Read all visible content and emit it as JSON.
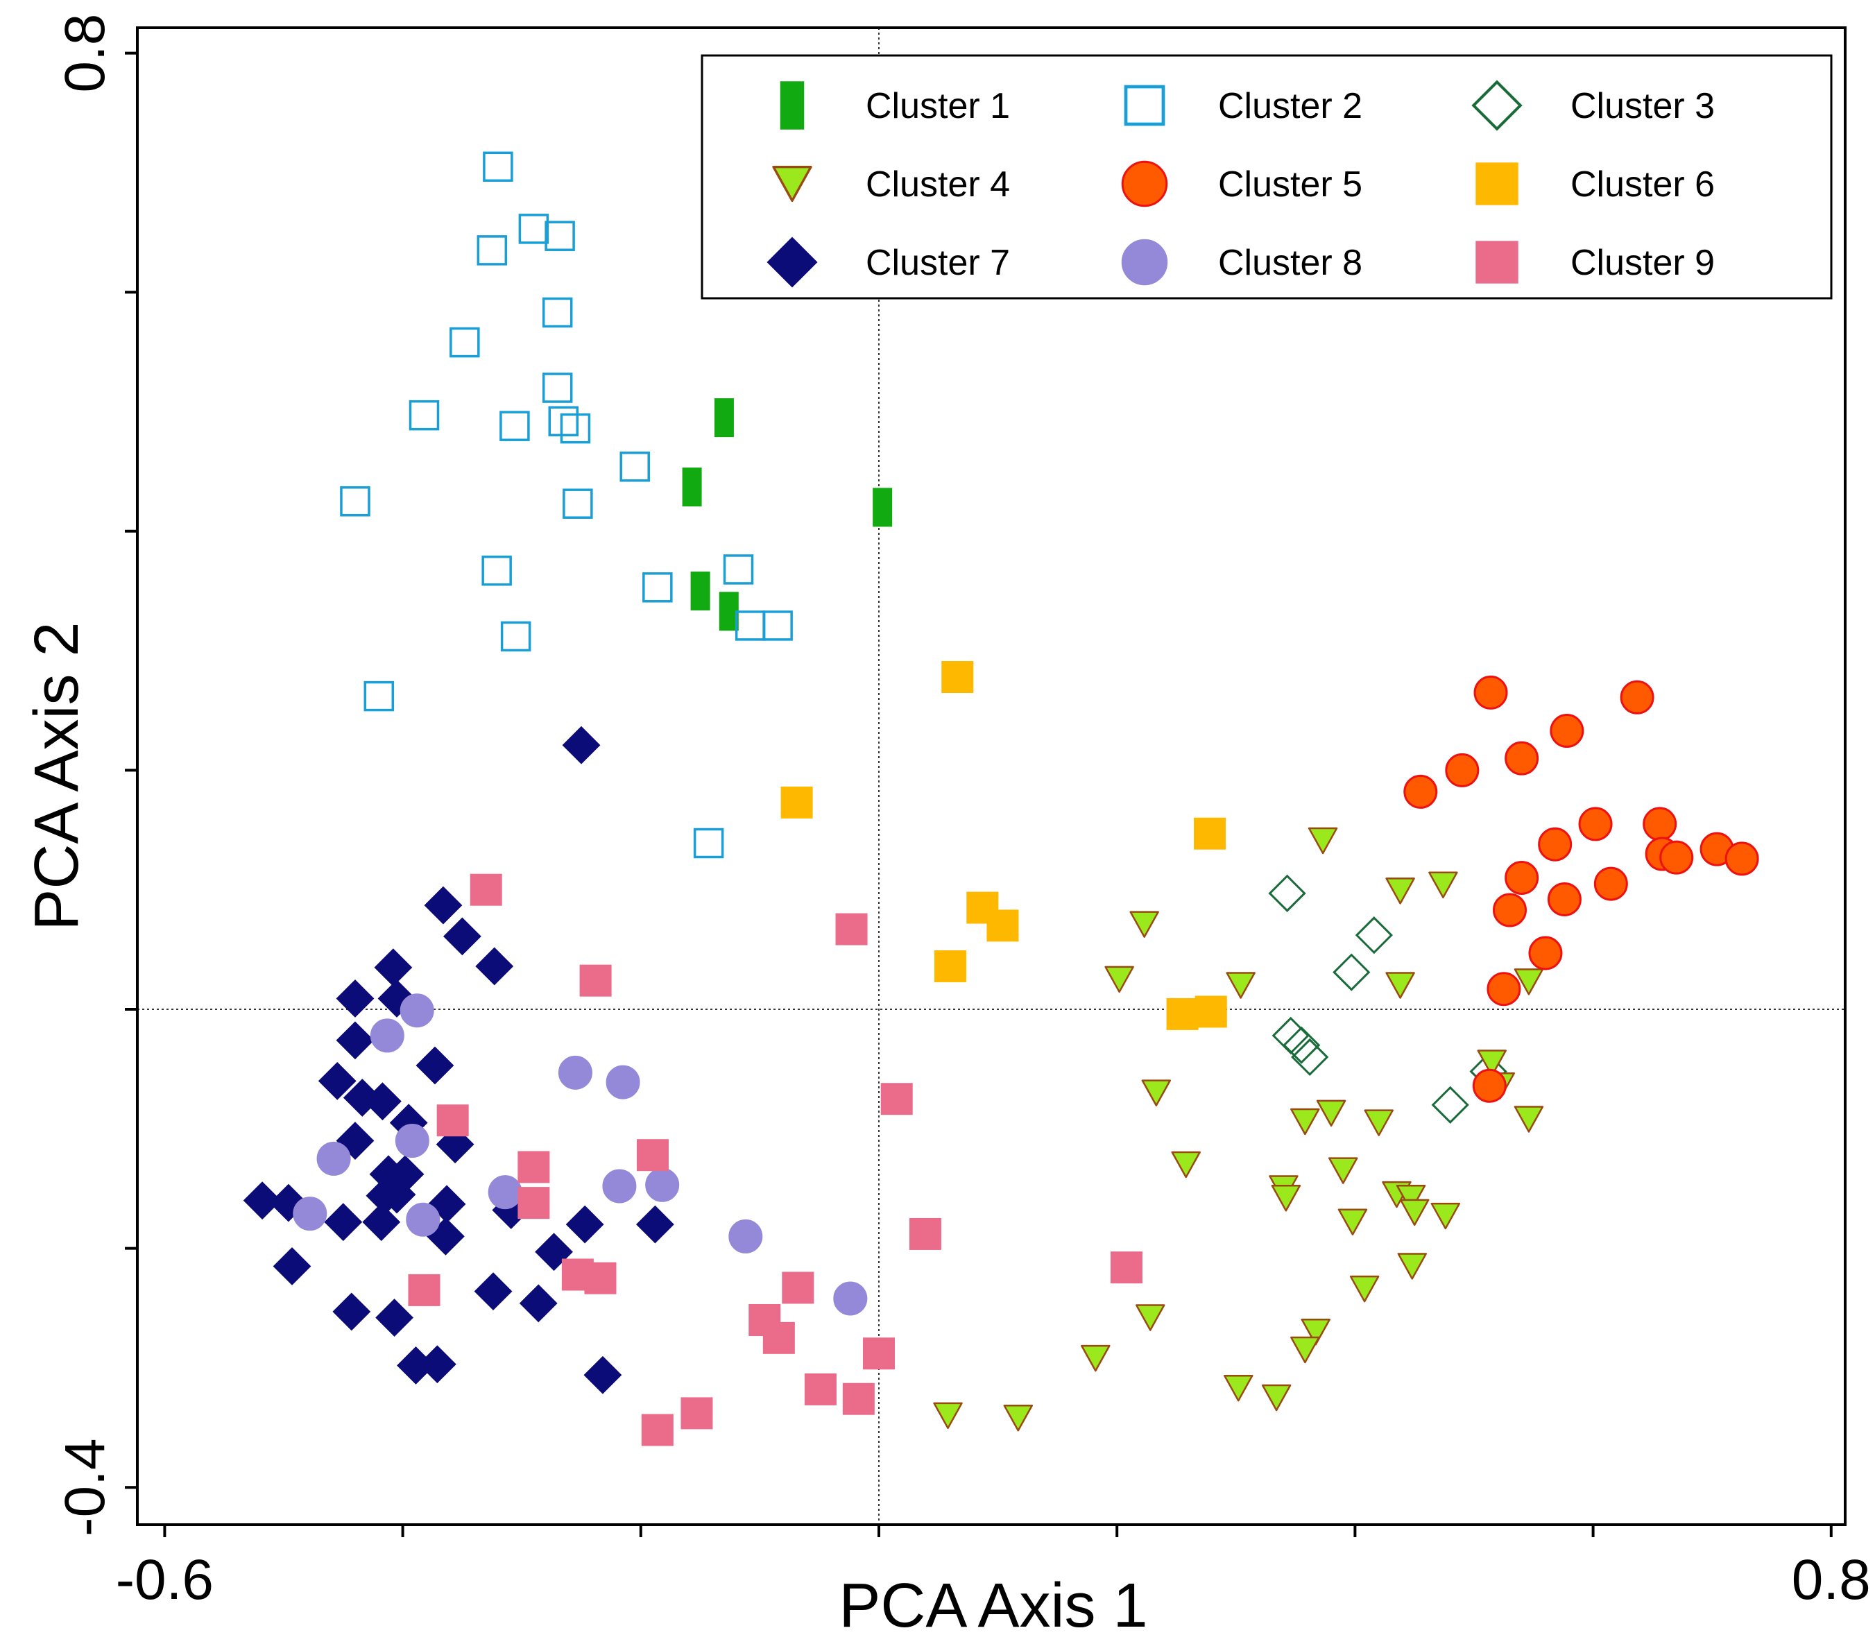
{
  "chart_data": {
    "type": "scatter",
    "title": "",
    "xlabel": "PCA Axis 1",
    "ylabel": "PCA Axis 2",
    "xlim": [
      -0.62,
      0.82
    ],
    "ylim": [
      -0.4,
      0.82
    ],
    "x_ticks": [
      -0.6,
      -0.4,
      -0.2,
      0.0,
      0.2,
      0.4,
      0.6,
      0.8
    ],
    "y_ticks": [
      -0.4,
      -0.2,
      0.0,
      0.2,
      0.4,
      0.6,
      0.8
    ],
    "x_tick_labels": [
      {
        "value": -0.6,
        "label": "-0.6"
      },
      {
        "value": 0.8,
        "label": "0.8"
      }
    ],
    "y_tick_labels": [
      {
        "value": -0.4,
        "label": "-0.4"
      },
      {
        "value": 0.8,
        "label": "0.8"
      }
    ],
    "reference_lines": {
      "x": 0,
      "y": 0,
      "style": "dotted"
    },
    "grid": false,
    "legend": {
      "position": "top-right",
      "columns": 3
    },
    "series": [
      {
        "name": "Cluster 1",
        "marker": "bar",
        "fill": "#11aa11",
        "stroke": "#11aa11",
        "points": [
          [
            -0.13,
            0.495
          ],
          [
            -0.157,
            0.437
          ],
          [
            -0.15,
            0.35
          ],
          [
            -0.126,
            0.333
          ],
          [
            0.003,
            0.42
          ]
        ]
      },
      {
        "name": "Cluster 2",
        "marker": "square-open",
        "fill": "none",
        "stroke": "#1a9ed6",
        "points": [
          [
            -0.32,
            0.705
          ],
          [
            -0.29,
            0.653
          ],
          [
            -0.325,
            0.635
          ],
          [
            -0.268,
            0.647
          ],
          [
            -0.27,
            0.583
          ],
          [
            -0.348,
            0.558
          ],
          [
            -0.27,
            0.52
          ],
          [
            -0.382,
            0.497
          ],
          [
            -0.306,
            0.488
          ],
          [
            -0.265,
            0.492
          ],
          [
            -0.255,
            0.486
          ],
          [
            -0.205,
            0.454
          ],
          [
            -0.44,
            0.425
          ],
          [
            -0.253,
            0.423
          ],
          [
            -0.321,
            0.367
          ],
          [
            -0.118,
            0.368
          ],
          [
            -0.186,
            0.353
          ],
          [
            -0.305,
            0.312
          ],
          [
            -0.108,
            0.321
          ],
          [
            -0.085,
            0.321
          ],
          [
            -0.42,
            0.262
          ],
          [
            -0.143,
            0.139
          ]
        ]
      },
      {
        "name": "Cluster 3",
        "marker": "diamond-open",
        "fill": "none",
        "stroke": "#1a6b3a",
        "points": [
          [
            0.343,
            0.097
          ],
          [
            0.416,
            0.062
          ],
          [
            0.397,
            0.031
          ],
          [
            0.346,
            -0.022
          ],
          [
            0.355,
            -0.03
          ],
          [
            0.362,
            -0.04
          ],
          [
            0.48,
            -0.08
          ],
          [
            0.512,
            -0.052
          ]
        ]
      },
      {
        "name": "Cluster 4",
        "marker": "triangle-down",
        "fill": "#9be81c",
        "stroke": "#9a4a10",
        "points": [
          [
            0.373,
            0.141
          ],
          [
            0.438,
            0.099
          ],
          [
            0.474,
            0.104
          ],
          [
            0.223,
            0.071
          ],
          [
            0.202,
            0.025
          ],
          [
            0.304,
            0.02
          ],
          [
            0.438,
            0.02
          ],
          [
            0.546,
            0.023
          ],
          [
            0.515,
            -0.045
          ],
          [
            0.233,
            -0.07
          ],
          [
            0.358,
            -0.094
          ],
          [
            0.38,
            -0.087
          ],
          [
            0.42,
            -0.095
          ],
          [
            0.522,
            -0.064
          ],
          [
            0.546,
            -0.092
          ],
          [
            0.258,
            -0.13
          ],
          [
            0.39,
            -0.135
          ],
          [
            0.34,
            -0.15
          ],
          [
            0.342,
            -0.158
          ],
          [
            0.435,
            -0.155
          ],
          [
            0.447,
            -0.158
          ],
          [
            0.45,
            -0.17
          ],
          [
            0.476,
            -0.173
          ],
          [
            0.398,
            -0.178
          ],
          [
            0.448,
            -0.215
          ],
          [
            0.408,
            -0.234
          ],
          [
            0.228,
            -0.258
          ],
          [
            0.367,
            -0.27
          ],
          [
            0.358,
            -0.285
          ],
          [
            0.182,
            -0.292
          ],
          [
            0.302,
            -0.317
          ],
          [
            0.334,
            -0.325
          ],
          [
            0.058,
            -0.34
          ],
          [
            0.117,
            -0.342
          ]
        ]
      },
      {
        "name": "Cluster 5",
        "marker": "circle",
        "fill": "#ff5a00",
        "stroke": "#ee1111",
        "points": [
          [
            0.514,
            0.265
          ],
          [
            0.637,
            0.261
          ],
          [
            0.578,
            0.233
          ],
          [
            0.54,
            0.21
          ],
          [
            0.49,
            0.2
          ],
          [
            0.455,
            0.182
          ],
          [
            0.602,
            0.155
          ],
          [
            0.656,
            0.155
          ],
          [
            0.568,
            0.138
          ],
          [
            0.658,
            0.13
          ],
          [
            0.67,
            0.127
          ],
          [
            0.704,
            0.134
          ],
          [
            0.725,
            0.126
          ],
          [
            0.54,
            0.11
          ],
          [
            0.615,
            0.105
          ],
          [
            0.576,
            0.092
          ],
          [
            0.53,
            0.083
          ],
          [
            0.56,
            0.047
          ],
          [
            0.525,
            0.017
          ],
          [
            0.513,
            -0.064
          ]
        ]
      },
      {
        "name": "Cluster 6",
        "marker": "square",
        "fill": "#ffb800",
        "stroke": "#ffb800",
        "points": [
          [
            0.066,
            0.278
          ],
          [
            -0.069,
            0.173
          ],
          [
            0.278,
            0.147
          ],
          [
            0.087,
            0.085
          ],
          [
            0.104,
            0.07
          ],
          [
            0.06,
            0.036
          ],
          [
            0.255,
            -0.004
          ],
          [
            0.279,
            -0.002
          ]
        ]
      },
      {
        "name": "Cluster 7",
        "marker": "diamond",
        "fill": "#0c0c78",
        "stroke": "#0c0c78",
        "points": [
          [
            -0.25,
            0.221
          ],
          [
            -0.366,
            0.087
          ],
          [
            -0.35,
            0.061
          ],
          [
            -0.323,
            0.036
          ],
          [
            -0.408,
            0.035
          ],
          [
            -0.44,
            0.009
          ],
          [
            -0.405,
            0.009
          ],
          [
            -0.44,
            -0.026
          ],
          [
            -0.373,
            -0.047
          ],
          [
            -0.455,
            -0.06
          ],
          [
            -0.434,
            -0.074
          ],
          [
            -0.417,
            -0.077
          ],
          [
            -0.395,
            -0.095
          ],
          [
            -0.44,
            -0.11
          ],
          [
            -0.356,
            -0.113
          ],
          [
            -0.398,
            -0.138
          ],
          [
            -0.412,
            -0.138
          ],
          [
            -0.405,
            -0.155
          ],
          [
            -0.415,
            -0.156
          ],
          [
            -0.518,
            -0.16
          ],
          [
            -0.496,
            -0.162
          ],
          [
            -0.363,
            -0.163
          ],
          [
            -0.309,
            -0.168
          ],
          [
            -0.45,
            -0.178
          ],
          [
            -0.418,
            -0.178
          ],
          [
            -0.247,
            -0.18
          ],
          [
            -0.188,
            -0.18
          ],
          [
            -0.364,
            -0.19
          ],
          [
            -0.273,
            -0.203
          ],
          [
            -0.493,
            -0.215
          ],
          [
            -0.324,
            -0.236
          ],
          [
            -0.286,
            -0.246
          ],
          [
            -0.443,
            -0.253
          ],
          [
            -0.407,
            -0.258
          ],
          [
            -0.389,
            -0.298
          ],
          [
            -0.371,
            -0.297
          ],
          [
            -0.232,
            -0.306
          ]
        ]
      },
      {
        "name": "Cluster 8",
        "marker": "circle",
        "fill": "#9488d8",
        "stroke": "#9488d8",
        "points": [
          [
            -0.388,
            -0.001
          ],
          [
            -0.413,
            -0.022
          ],
          [
            -0.255,
            -0.053
          ],
          [
            -0.215,
            -0.061
          ],
          [
            -0.392,
            -0.11
          ],
          [
            -0.458,
            -0.125
          ],
          [
            -0.314,
            -0.153
          ],
          [
            -0.218,
            -0.148
          ],
          [
            -0.182,
            -0.147
          ],
          [
            -0.478,
            -0.171
          ],
          [
            -0.383,
            -0.176
          ],
          [
            -0.112,
            -0.19
          ],
          [
            -0.024,
            -0.242
          ]
        ]
      },
      {
        "name": "Cluster 9",
        "marker": "square",
        "fill": "#ea6b8a",
        "stroke": "#ea6b8a",
        "points": [
          [
            -0.33,
            0.1
          ],
          [
            -0.023,
            0.067
          ],
          [
            -0.238,
            0.024
          ],
          [
            0.015,
            -0.075
          ],
          [
            -0.358,
            -0.093
          ],
          [
            -0.19,
            -0.122
          ],
          [
            -0.29,
            -0.132
          ],
          [
            -0.29,
            -0.162
          ],
          [
            0.039,
            -0.188
          ],
          [
            0.208,
            -0.216
          ],
          [
            -0.253,
            -0.222
          ],
          [
            -0.234,
            -0.225
          ],
          [
            -0.382,
            -0.235
          ],
          [
            -0.068,
            -0.233
          ],
          [
            -0.096,
            -0.26
          ],
          [
            -0.084,
            -0.275
          ],
          [
            0.0,
            -0.288
          ],
          [
            -0.049,
            -0.318
          ],
          [
            -0.017,
            -0.326
          ],
          [
            -0.153,
            -0.338
          ],
          [
            -0.186,
            -0.352
          ]
        ]
      }
    ]
  }
}
